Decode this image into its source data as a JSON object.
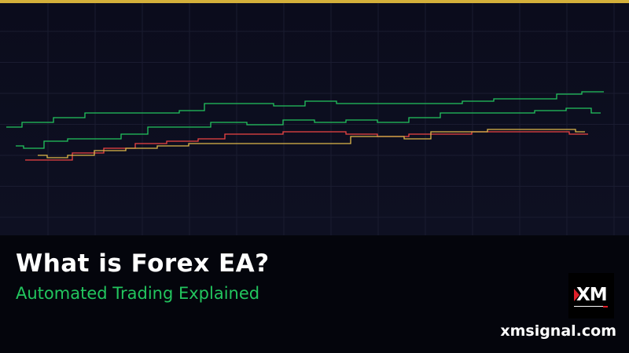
{
  "header": {
    "title": "What is Forex EA?",
    "subtitle": "Automated Trading Explained",
    "site": "xmsignal.com",
    "logo_text": "XM"
  },
  "colors": {
    "accent_bar": "#d4b03a",
    "green": "#22c55e",
    "red": "#ef4444",
    "yellow": "#e0b84a",
    "background": "#0b0c1c"
  },
  "chart_data": {
    "type": "line",
    "title": "",
    "xlabel": "",
    "ylabel": "",
    "grid": true,
    "legend": "none",
    "xlim": [
      0,
      100
    ],
    "ylim": [
      0,
      100
    ],
    "series": [
      {
        "color": "#22c55e",
        "points": [
          [
            1,
            46
          ],
          [
            6,
            48
          ],
          [
            11,
            50
          ],
          [
            16,
            52
          ],
          [
            21,
            52
          ],
          [
            26,
            52
          ],
          [
            31,
            53
          ],
          [
            34,
            56
          ],
          [
            41,
            56
          ],
          [
            46,
            55
          ],
          [
            51,
            57
          ],
          [
            56,
            56
          ],
          [
            61,
            56
          ],
          [
            66,
            56
          ],
          [
            71,
            56
          ],
          [
            76,
            57
          ],
          [
            81,
            58
          ],
          [
            86,
            58
          ],
          [
            91,
            60
          ],
          [
            94,
            61
          ],
          [
            96,
            61
          ]
        ]
      },
      {
        "color": "#22c55e",
        "points": [
          [
            2.5,
            38
          ],
          [
            5,
            37
          ],
          [
            9,
            40
          ],
          [
            12.5,
            41
          ],
          [
            17.5,
            41
          ],
          [
            21,
            43
          ],
          [
            26,
            46
          ],
          [
            31,
            46
          ],
          [
            36,
            48
          ],
          [
            42.5,
            47
          ],
          [
            47.5,
            49
          ],
          [
            52.5,
            48
          ],
          [
            57.5,
            49
          ],
          [
            62.5,
            48
          ],
          [
            67.5,
            50
          ],
          [
            72.5,
            52
          ],
          [
            77.5,
            52
          ],
          [
            82.5,
            52
          ],
          [
            87.5,
            53
          ],
          [
            92.5,
            54
          ],
          [
            95.5,
            52
          ]
        ]
      },
      {
        "color": "#ef4444",
        "points": [
          [
            4,
            32
          ],
          [
            9,
            32
          ],
          [
            14,
            35
          ],
          [
            19,
            37
          ],
          [
            24,
            39
          ],
          [
            29,
            40
          ],
          [
            34,
            41
          ],
          [
            37.5,
            43
          ],
          [
            42.5,
            43
          ],
          [
            47.5,
            44
          ],
          [
            52.5,
            44
          ],
          [
            57.5,
            43
          ],
          [
            62.5,
            42
          ],
          [
            67.5,
            43
          ],
          [
            72.5,
            43
          ],
          [
            77.5,
            44
          ],
          [
            82.5,
            44
          ],
          [
            87.5,
            44
          ],
          [
            93.5,
            43
          ]
        ]
      },
      {
        "color": "#e0b84a",
        "points": [
          [
            6,
            34
          ],
          [
            9,
            33
          ],
          [
            12.5,
            34
          ],
          [
            17.5,
            36
          ],
          [
            22.5,
            37
          ],
          [
            27.5,
            38
          ],
          [
            32.5,
            39
          ],
          [
            37.5,
            39
          ],
          [
            42.5,
            39
          ],
          [
            47.5,
            39
          ],
          [
            54,
            39
          ],
          [
            57.5,
            42
          ],
          [
            62.5,
            42
          ],
          [
            66,
            41
          ],
          [
            71,
            44
          ],
          [
            76,
            44
          ],
          [
            79,
            45
          ],
          [
            85,
            45
          ],
          [
            90,
            45
          ],
          [
            93,
            44
          ]
        ]
      }
    ]
  }
}
